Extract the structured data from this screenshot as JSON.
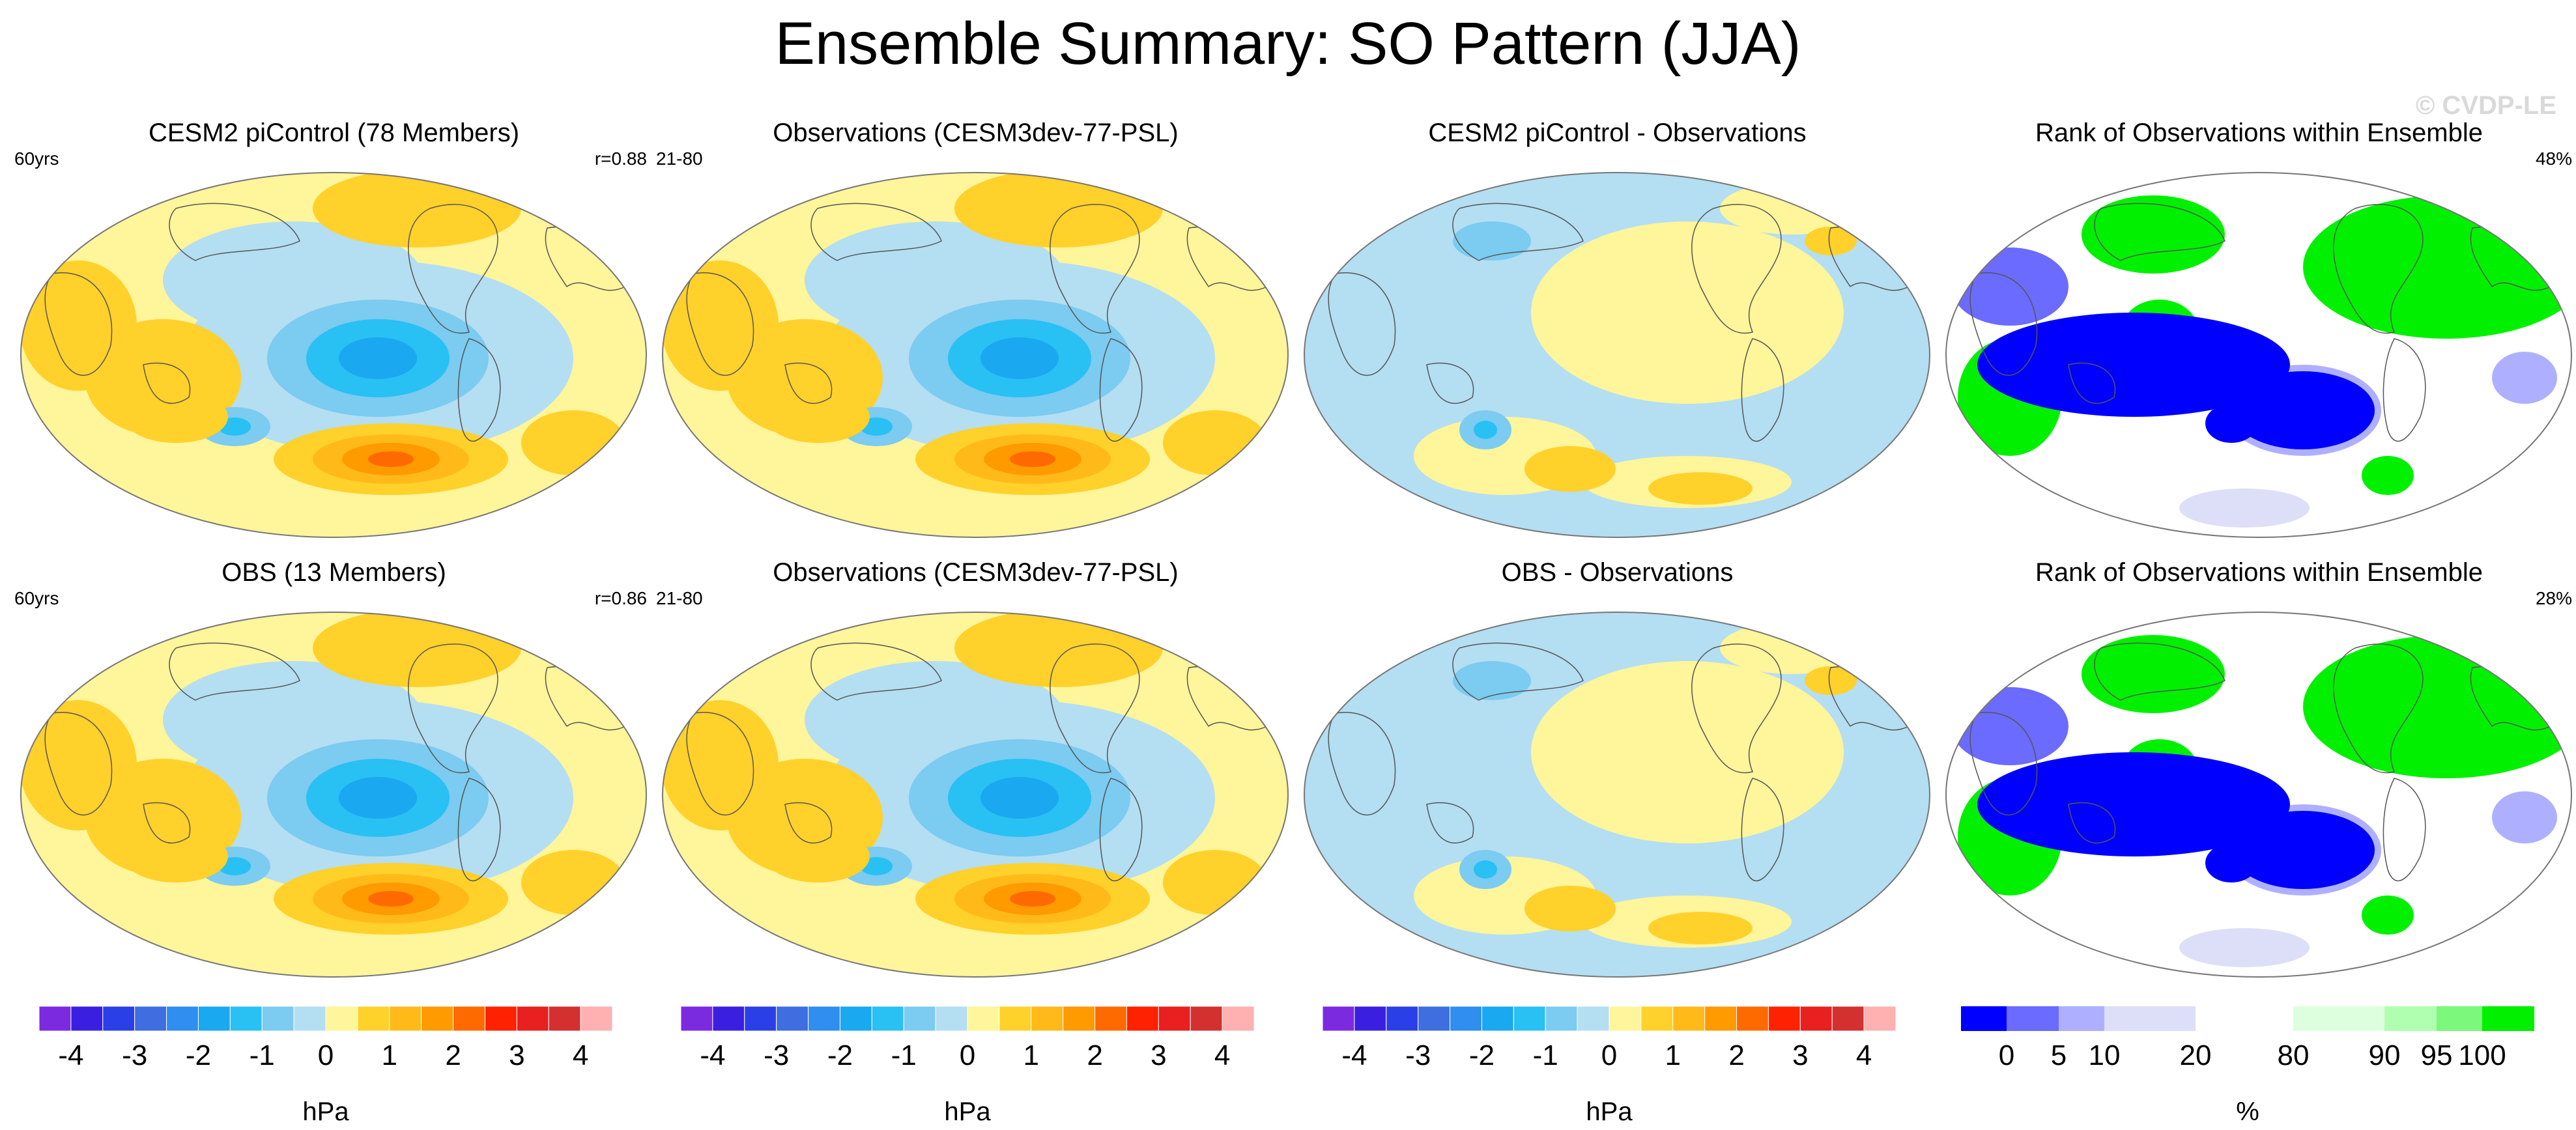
{
  "title": "Ensemble Summary: SO Pattern (JJA)",
  "watermark": "© CVDP-LE",
  "panels": [
    {
      "title": "CESM2 piControl (78 Members)",
      "left_note": "60yrs",
      "right_note": "r=0.88",
      "kind": "pattern"
    },
    {
      "title": "Observations (CESM3dev-77-PSL)",
      "left_note": "21-80",
      "right_note": "",
      "kind": "pattern"
    },
    {
      "title": "CESM2 piControl - Observations",
      "left_note": "",
      "right_note": "",
      "kind": "difference"
    },
    {
      "title": "Rank of Observations within Ensemble",
      "left_note": "",
      "right_note": "48%",
      "kind": "rank"
    },
    {
      "title": "OBS (13 Members)",
      "left_note": "60yrs",
      "right_note": "r=0.86",
      "kind": "pattern"
    },
    {
      "title": "Observations (CESM3dev-77-PSL)",
      "left_note": "21-80",
      "right_note": "",
      "kind": "pattern"
    },
    {
      "title": "OBS - Observations",
      "left_note": "",
      "right_note": "",
      "kind": "difference"
    },
    {
      "title": "Rank of Observations within Ensemble",
      "left_note": "",
      "right_note": "28%",
      "kind": "rank"
    }
  ],
  "chart_data": {
    "type": "heatmap",
    "projection": "Robinson global maps (sea level pressure pattern)",
    "pattern_colorbar": {
      "unit": "hPa",
      "tick_labels": [
        "-4",
        "-3",
        "-2",
        "-1",
        "0",
        "1",
        "2",
        "3",
        "4"
      ],
      "levels": [
        -4.5,
        -4,
        -3.5,
        -3,
        -2.5,
        -2,
        -1.5,
        -1,
        -0.5,
        0,
        0.5,
        1,
        1.5,
        2,
        2.5,
        3,
        3.5,
        4,
        4.5
      ],
      "colors": [
        "#7b2ae0",
        "#3a1fe0",
        "#2b3fe8",
        "#3e6ee0",
        "#2f8ef0",
        "#1aa8f0",
        "#29c0f4",
        "#7ccbf0",
        "#b4def2",
        "#fff59a",
        "#ffd12a",
        "#ffba1a",
        "#ff9a00",
        "#ff6a00",
        "#ff2200",
        "#e82020",
        "#d43030",
        "#ffb0b0"
      ]
    },
    "rank_colorbar": {
      "unit": "%",
      "tick_labels": [
        "0",
        "5",
        "10",
        "20",
        "80",
        "90",
        "95",
        "100"
      ],
      "colors": [
        "#0000ff",
        "#6b6bff",
        "#aeb0ff",
        "#dddff8",
        "#ffffff",
        "#ddffdd",
        "#b0ffb0",
        "#7cf87c",
        "#00f000"
      ]
    }
  }
}
